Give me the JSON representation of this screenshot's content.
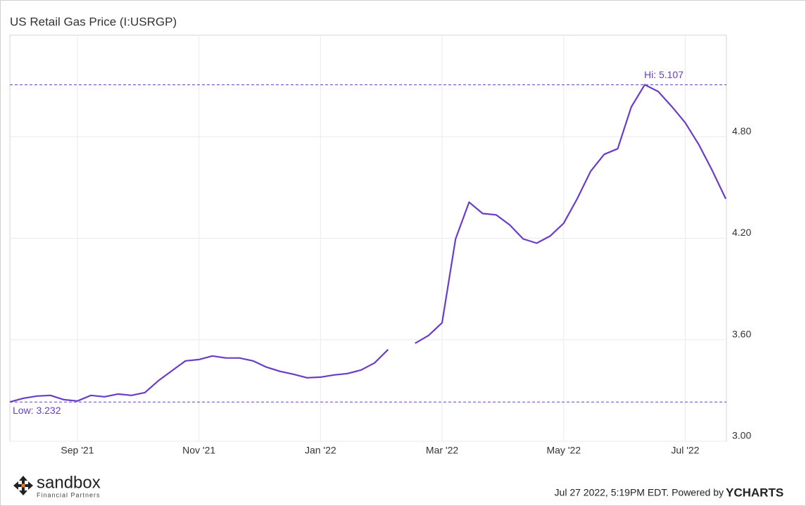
{
  "chart_data": {
    "type": "line",
    "title": "US Retail Gas Price (I:USRGP)",
    "categories": [
      null,
      null,
      null,
      null,
      null,
      "Sep '21",
      null,
      null,
      null,
      null,
      null,
      null,
      null,
      null,
      "Nov '21",
      null,
      null,
      null,
      null,
      null,
      null,
      null,
      null,
      "Jan '22",
      null,
      null,
      null,
      null,
      null,
      null,
      null,
      null,
      "Mar '22",
      null,
      null,
      null,
      null,
      null,
      null,
      null,
      null,
      "May '22",
      null,
      null,
      null,
      null,
      null,
      null,
      null,
      null,
      "Jul '22",
      null,
      null,
      null
    ],
    "series": [
      {
        "name": "US Retail Gas Price",
        "color": "#6a3cc8",
        "values": [
          3.232,
          3.254,
          3.267,
          3.271,
          3.246,
          3.238,
          3.271,
          3.263,
          3.279,
          3.271,
          3.288,
          3.358,
          3.417,
          3.475,
          3.483,
          3.504,
          3.492,
          3.492,
          3.475,
          3.438,
          3.413,
          3.396,
          3.375,
          3.379,
          3.392,
          3.4,
          3.421,
          3.463,
          3.542,
          null,
          3.579,
          3.625,
          3.7,
          4.196,
          4.413,
          4.346,
          4.338,
          4.279,
          4.196,
          4.171,
          4.213,
          4.288,
          4.433,
          4.596,
          4.696,
          4.729,
          4.975,
          5.107,
          5.067,
          4.979,
          4.883,
          4.754,
          4.6,
          4.433
        ]
      }
    ],
    "ylim": [
      3.0,
      5.4
    ],
    "yticks": [
      {
        "value": 3.0,
        "label": "3.00"
      },
      {
        "value": 3.6,
        "label": "3.60"
      },
      {
        "value": 4.2,
        "label": "4.20"
      },
      {
        "value": 4.8,
        "label": "4.80"
      }
    ],
    "grid": true,
    "high": {
      "value": 5.107,
      "label": "Hi: 5.107"
    },
    "low": {
      "value": 3.232,
      "label": "Low: 3.232"
    }
  },
  "footer": {
    "timestamp": "Jul 27 2022, 5:19PM EDT. Powered by",
    "provider": "YCHARTS",
    "brand": "sandbox",
    "brand_sub": "Financial Partners"
  }
}
